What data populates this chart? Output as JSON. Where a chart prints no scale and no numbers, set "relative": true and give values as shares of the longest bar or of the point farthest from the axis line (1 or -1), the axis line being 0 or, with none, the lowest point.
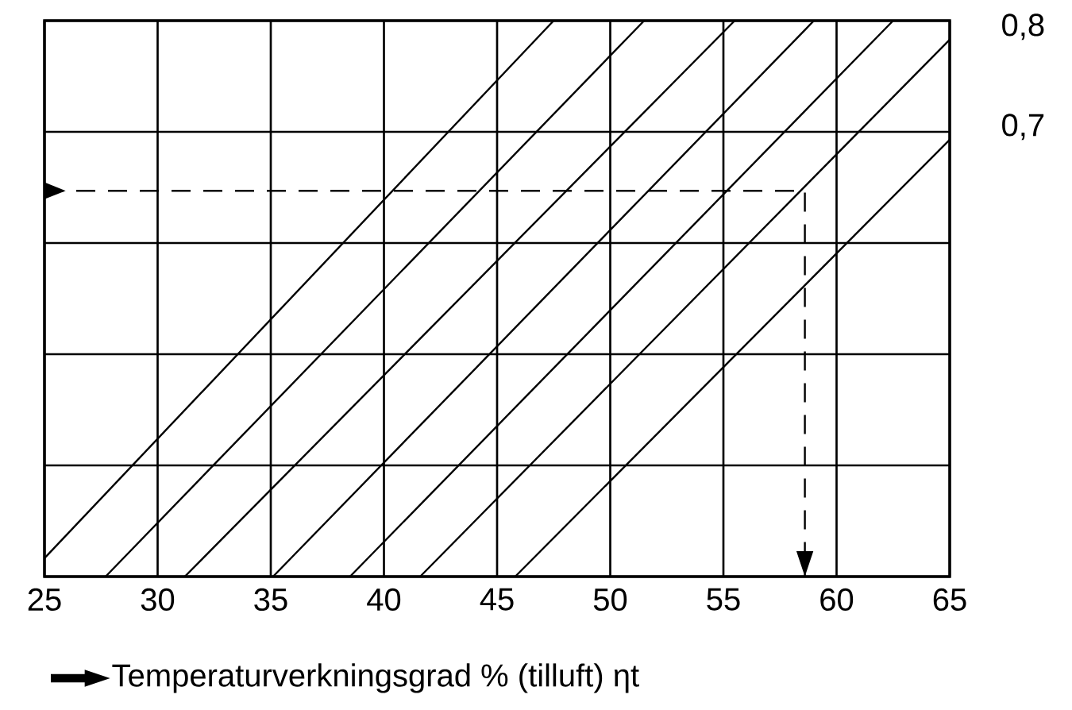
{
  "chart_data": {
    "type": "line",
    "relative": true,
    "xlabel": "Temperaturverkningsgrad % (tilluft) ηt",
    "xlim": [
      25,
      65
    ],
    "xticks": [
      25,
      30,
      35,
      40,
      45,
      50,
      55,
      60,
      65
    ],
    "grid": true,
    "marker": "none",
    "line_style": "solid",
    "series": [
      {
        "color": "#000000",
        "x": [
          25,
          47.5
        ],
        "values": [
          0.033,
          1
        ]
      },
      {
        "color": "#000000",
        "x": [
          27.7,
          51.5
        ],
        "values": [
          0,
          1
        ]
      },
      {
        "color": "#000000",
        "x": [
          31.2,
          55.5
        ],
        "values": [
          0,
          1
        ]
      },
      {
        "color": "#000000",
        "x": [
          35.1,
          59
        ],
        "values": [
          0,
          1
        ]
      },
      {
        "color": "#000000",
        "x": [
          38.5,
          62.5
        ],
        "values": [
          0,
          1
        ]
      },
      {
        "color": "#000000",
        "x": [
          41.6,
          65
        ],
        "values": [
          0,
          0.966
        ]
      },
      {
        "color": "#000000",
        "x": [
          45.8,
          65
        ],
        "values": [
          0,
          0.786
        ]
      },
      {
        "color": "#000000",
        "x": [
          25,
          58.6,
          58.6
        ],
        "values": [
          0.694,
          0.694,
          0
        ],
        "line_style": "dashed"
      }
    ],
    "annotations": [
      {
        "text": "0,8",
        "x": 65,
        "y": 0.966
      },
      {
        "text": "0,7",
        "x": 65,
        "y": 0.786
      }
    ]
  }
}
